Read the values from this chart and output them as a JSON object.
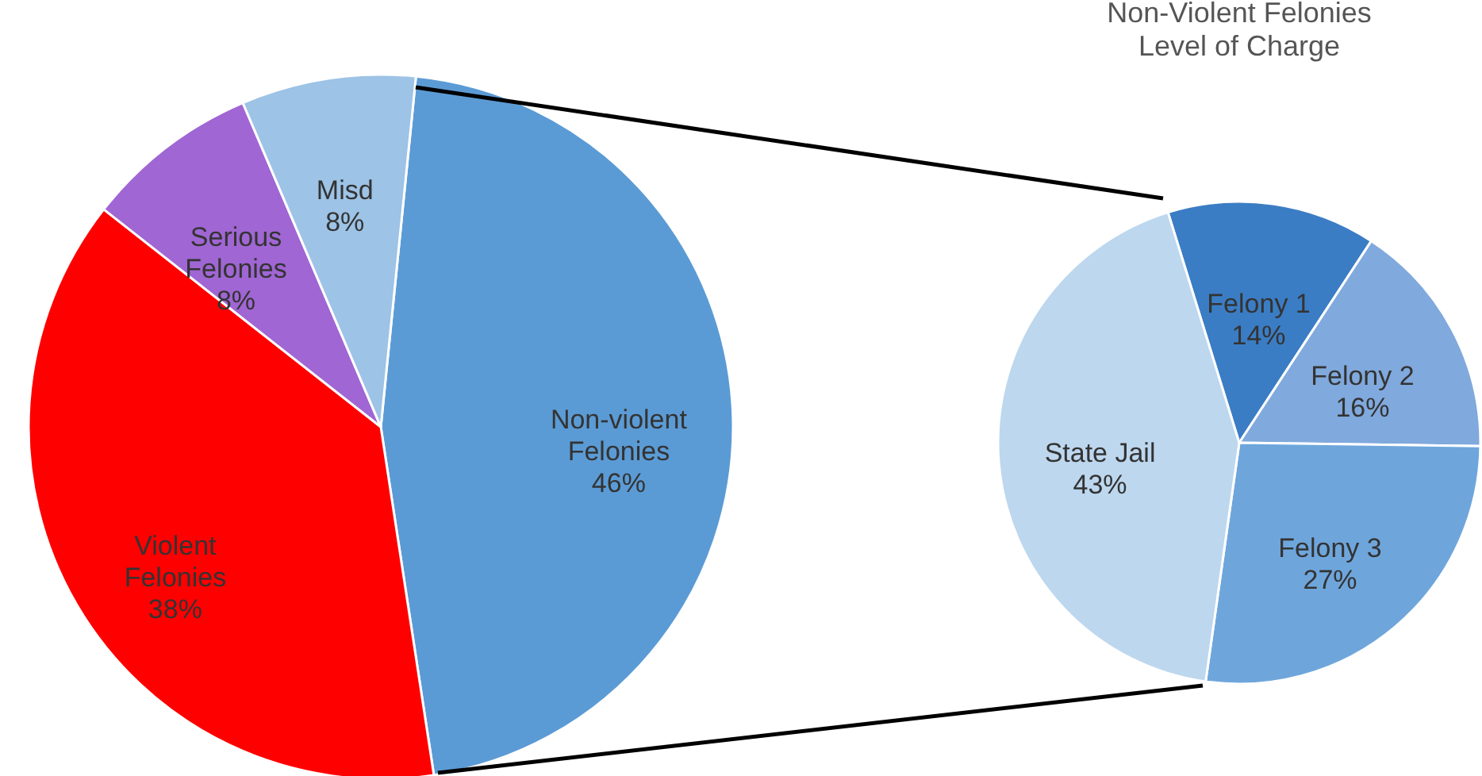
{
  "chart_data": [
    {
      "type": "pie",
      "categories": [
        "Non-violent Felonies",
        "Violent Felonies",
        "Serious Felonies",
        "Misd"
      ],
      "values": [
        46,
        38,
        8,
        8
      ],
      "value_labels": [
        "46%",
        "38%",
        "8%",
        "8%"
      ],
      "colors": [
        "#5b9bd5",
        "#ff0000",
        "#a066d3",
        "#9dc3e6"
      ],
      "legend": false
    },
    {
      "type": "pie",
      "title": "Non-Violent Felonies",
      "subtitle": "Level of Charge",
      "categories": [
        "Felony 1",
        "Felony 2",
        "Felony 3",
        "State Jail"
      ],
      "values": [
        14,
        16,
        27,
        43
      ],
      "value_labels": [
        "14%",
        "16%",
        "27%",
        "43%"
      ],
      "colors": [
        "#3b7dc4",
        "#80a9dd",
        "#6ea6dc",
        "#bdd7ee"
      ],
      "legend": false
    }
  ]
}
